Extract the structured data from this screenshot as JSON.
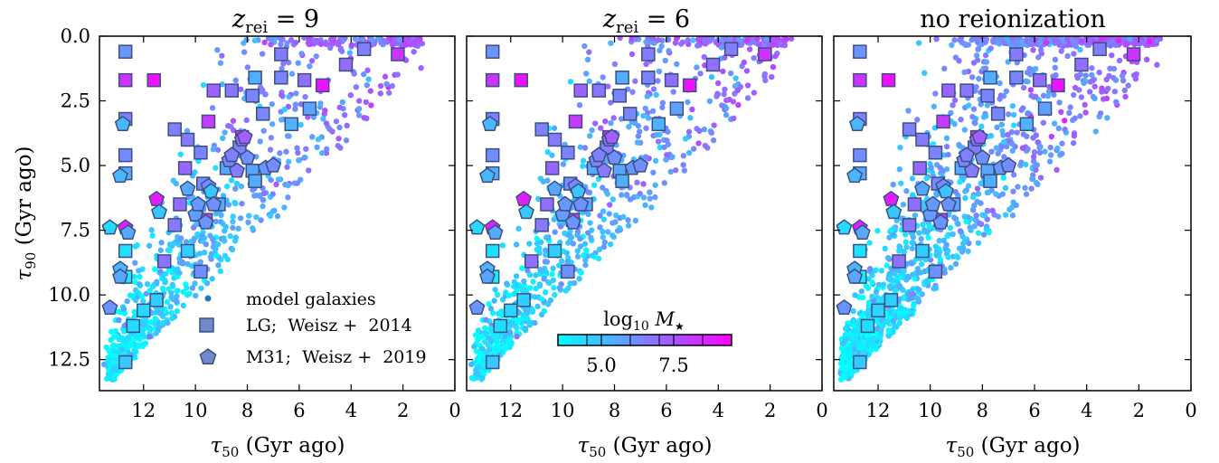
{
  "chart_data": [
    {
      "type": "scatter",
      "title": "z_rei = 9",
      "title_main": "z",
      "title_sub": "rei",
      "title_suffix": " = 9",
      "xlabel_main": "τ",
      "xlabel_sub": "50",
      "xlabel_suffix": " (Gyr ago)",
      "ylabel_main": "τ",
      "ylabel_sub": "90",
      "ylabel_suffix": " (Gyr ago)",
      "xlim": [
        13.7,
        0
      ],
      "ylim": [
        13.7,
        0
      ],
      "xticks": [
        12,
        10,
        8,
        6,
        4,
        2,
        0
      ],
      "yticks": [
        0.0,
        2.5,
        5.0,
        7.5,
        10.0,
        12.5
      ],
      "ytick_labels": [
        "0.0",
        "2.5",
        "5.0",
        "7.5",
        "10.0",
        "12.5"
      ],
      "model_spread": 0.35,
      "legend": {
        "placement": "lower-right",
        "entries": [
          "model galaxies",
          "LG;  Weisz +  2014",
          "M31;  Weisz +  2019"
        ]
      }
    },
    {
      "type": "scatter",
      "title": "z_rei = 6",
      "title_main": "z",
      "title_sub": "rei",
      "title_suffix": " = 6",
      "xlabel_main": "τ",
      "xlabel_sub": "50",
      "xlabel_suffix": " (Gyr ago)",
      "xlim": [
        13.7,
        0
      ],
      "ylim": [
        13.7,
        0
      ],
      "xticks": [
        12,
        10,
        8,
        6,
        4,
        2,
        0
      ],
      "model_spread": 0.38,
      "colorbar": {
        "label_main": "log",
        "label_sub": "10",
        "label_var": " M",
        "label_var_sub": "★",
        "range": [
          3.5,
          9.5
        ],
        "ticks": [
          5.0,
          7.5
        ],
        "tick_labels": [
          "5.0",
          "7.5"
        ],
        "colormap": [
          "#00ffff",
          "#ff00ff"
        ]
      }
    },
    {
      "type": "scatter",
      "title": "no reionization",
      "xlabel_main": "τ",
      "xlabel_sub": "50",
      "xlabel_suffix": " (Gyr ago)",
      "xlim": [
        13.7,
        0
      ],
      "ylim": [
        13.7,
        0
      ],
      "xticks": [
        12,
        10,
        8,
        6,
        4,
        2,
        0
      ],
      "model_spread": 1.0
    }
  ],
  "observations": {
    "lg_weisz2014": {
      "name": "LG;  Weisz +  2014",
      "marker": "square",
      "points": [
        {
          "x": 12.7,
          "y": 0.6,
          "m": 6.0
        },
        {
          "x": 12.7,
          "y": 1.7,
          "m": 8.3
        },
        {
          "x": 11.6,
          "y": 1.7,
          "m": 9.1
        },
        {
          "x": 12.7,
          "y": 3.2,
          "m": 6.5
        },
        {
          "x": 12.7,
          "y": 4.6,
          "m": 6.2
        },
        {
          "x": 12.7,
          "y": 5.3,
          "m": 5.5
        },
        {
          "x": 12.7,
          "y": 8.3,
          "m": 4.2
        },
        {
          "x": 12.7,
          "y": 9.3,
          "m": 3.9
        },
        {
          "x": 12.7,
          "y": 12.6,
          "m": 4.8
        },
        {
          "x": 12.4,
          "y": 11.2,
          "m": 4.3
        },
        {
          "x": 12.0,
          "y": 10.6,
          "m": 4.5
        },
        {
          "x": 11.5,
          "y": 10.2,
          "m": 4.6
        },
        {
          "x": 11.2,
          "y": 8.7,
          "m": 6.8
        },
        {
          "x": 10.8,
          "y": 3.6,
          "m": 6.5
        },
        {
          "x": 10.6,
          "y": 6.5,
          "m": 6.9
        },
        {
          "x": 10.4,
          "y": 5.1,
          "m": 7.1
        },
        {
          "x": 10.8,
          "y": 7.3,
          "m": 6.7
        },
        {
          "x": 10.3,
          "y": 8.3,
          "m": 4.7
        },
        {
          "x": 10.3,
          "y": 4.0,
          "m": 6.6
        },
        {
          "x": 9.8,
          "y": 4.5,
          "m": 6.4
        },
        {
          "x": 9.7,
          "y": 5.7,
          "m": 6.2
        },
        {
          "x": 9.6,
          "y": 7.1,
          "m": 8.0
        },
        {
          "x": 9.5,
          "y": 3.3,
          "m": 8.1
        },
        {
          "x": 9.3,
          "y": 2.1,
          "m": 7.2
        },
        {
          "x": 9.8,
          "y": 9.1,
          "m": 6.1
        },
        {
          "x": 9.1,
          "y": 6.5,
          "m": 5.6
        },
        {
          "x": 8.8,
          "y": 5.1,
          "m": 5.5
        },
        {
          "x": 8.6,
          "y": 2.1,
          "m": 6.7
        },
        {
          "x": 8.3,
          "y": 4.3,
          "m": 6.5
        },
        {
          "x": 8.2,
          "y": 3.9,
          "m": 8.5
        },
        {
          "x": 7.8,
          "y": 2.3,
          "m": 6.4
        },
        {
          "x": 7.8,
          "y": 5.2,
          "m": 5.6
        },
        {
          "x": 7.7,
          "y": 5.6,
          "m": 5.4
        },
        {
          "x": 7.7,
          "y": 1.6,
          "m": 5.4
        },
        {
          "x": 7.4,
          "y": 3.0,
          "m": 6.3
        },
        {
          "x": 6.7,
          "y": 1.6,
          "m": 6.4
        },
        {
          "x": 6.7,
          "y": 0.7,
          "m": 6.6
        },
        {
          "x": 6.3,
          "y": 3.4,
          "m": 5.3
        },
        {
          "x": 5.8,
          "y": 1.7,
          "m": 6.9
        },
        {
          "x": 5.6,
          "y": 2.8,
          "m": 5.7
        },
        {
          "x": 5.1,
          "y": 1.9,
          "m": 9.0
        },
        {
          "x": 4.2,
          "y": 1.1,
          "m": 6.9
        },
        {
          "x": 3.5,
          "y": 0.5,
          "m": 6.5
        },
        {
          "x": 2.2,
          "y": 0.7,
          "m": 8.3
        }
      ]
    },
    "m31_weisz2019": {
      "name": "M31;  Weisz +  2019",
      "marker": "pentagon",
      "points": [
        {
          "x": 12.8,
          "y": 3.4,
          "m": 5.2
        },
        {
          "x": 12.9,
          "y": 5.4,
          "m": 5.2
        },
        {
          "x": 13.3,
          "y": 7.4,
          "m": 4.4
        },
        {
          "x": 12.7,
          "y": 7.4,
          "m": 8.8
        },
        {
          "x": 12.6,
          "y": 7.6,
          "m": 5.5
        },
        {
          "x": 12.9,
          "y": 9.0,
          "m": 5.3
        },
        {
          "x": 12.9,
          "y": 9.3,
          "m": 5.6
        },
        {
          "x": 13.3,
          "y": 10.5,
          "m": 6.0
        },
        {
          "x": 11.5,
          "y": 6.3,
          "m": 8.8
        },
        {
          "x": 11.4,
          "y": 6.8,
          "m": 4.8
        },
        {
          "x": 10.3,
          "y": 5.9,
          "m": 5.6
        },
        {
          "x": 10.0,
          "y": 6.9,
          "m": 5.8
        },
        {
          "x": 9.5,
          "y": 5.8,
          "m": 6.2
        },
        {
          "x": 9.4,
          "y": 6.0,
          "m": 4.9
        },
        {
          "x": 9.6,
          "y": 7.2,
          "m": 6.0
        },
        {
          "x": 9.3,
          "y": 6.5,
          "m": 6.1
        },
        {
          "x": 8.7,
          "y": 4.8,
          "m": 6.4
        },
        {
          "x": 8.6,
          "y": 4.6,
          "m": 6.5
        },
        {
          "x": 8.4,
          "y": 5.2,
          "m": 6.6
        },
        {
          "x": 8.2,
          "y": 4.0,
          "m": 6.9
        },
        {
          "x": 8.1,
          "y": 3.9,
          "m": 7.3
        },
        {
          "x": 8.0,
          "y": 4.7,
          "m": 6.1
        },
        {
          "x": 7.3,
          "y": 5.1,
          "m": 6.0
        },
        {
          "x": 7.0,
          "y": 5.0,
          "m": 6.2
        },
        {
          "x": 9.9,
          "y": 6.5,
          "m": 5.9
        }
      ]
    }
  }
}
